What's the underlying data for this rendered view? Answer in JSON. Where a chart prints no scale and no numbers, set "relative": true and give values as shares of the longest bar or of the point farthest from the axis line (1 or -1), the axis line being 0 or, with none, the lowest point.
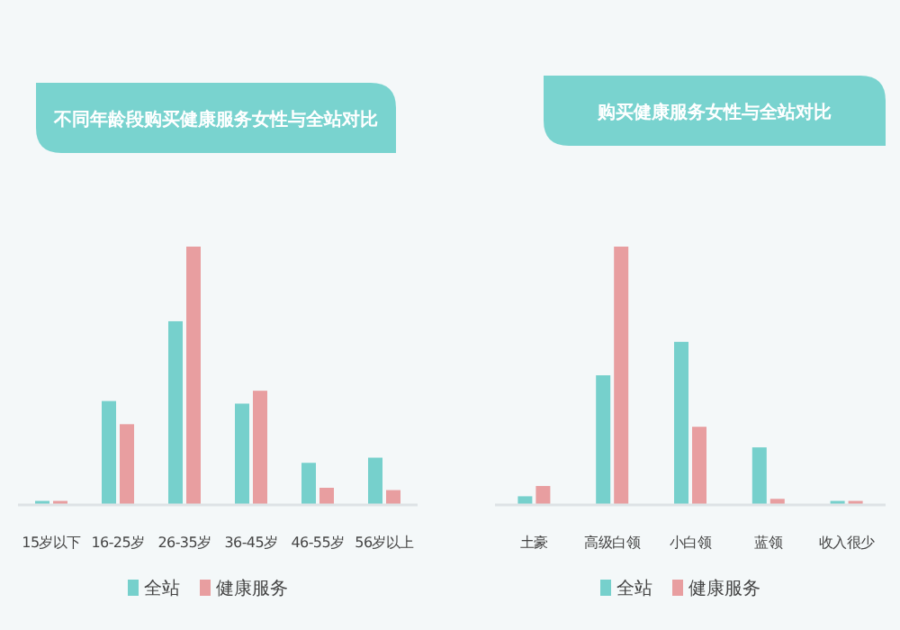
{
  "chart_data": [
    {
      "type": "bar",
      "title": "不同年龄段购买健康服务女性与全站对比",
      "relative": true,
      "legend": "bottom",
      "categories": [
        "15岁以下",
        "16-25岁",
        "26-35岁",
        "36-45岁",
        "46-55岁",
        "56岁以上"
      ],
      "series": [
        {
          "name": "全站",
          "color": "#76d0cc",
          "values": [
            0.012,
            0.4,
            0.71,
            0.39,
            0.16,
            0.18
          ]
        },
        {
          "name": "健康服务",
          "color": "#e89ea0",
          "values": [
            0.012,
            0.31,
            1,
            0.44,
            0.063,
            0.054
          ]
        }
      ]
    },
    {
      "type": "bar",
      "title": "购买健康服务女性与全站对比",
      "relative": true,
      "legend": "bottom",
      "categories": [
        "土豪",
        "高级白领",
        "小白领",
        "蓝领",
        "收入很少"
      ],
      "series": [
        {
          "name": "全站",
          "color": "#76d0cc",
          "values": [
            0.03,
            0.5,
            0.63,
            0.22,
            0.012
          ]
        },
        {
          "name": "健康服务",
          "color": "#e89ea0",
          "values": [
            0.07,
            1,
            0.3,
            0.02,
            0.012
          ]
        }
      ]
    }
  ]
}
